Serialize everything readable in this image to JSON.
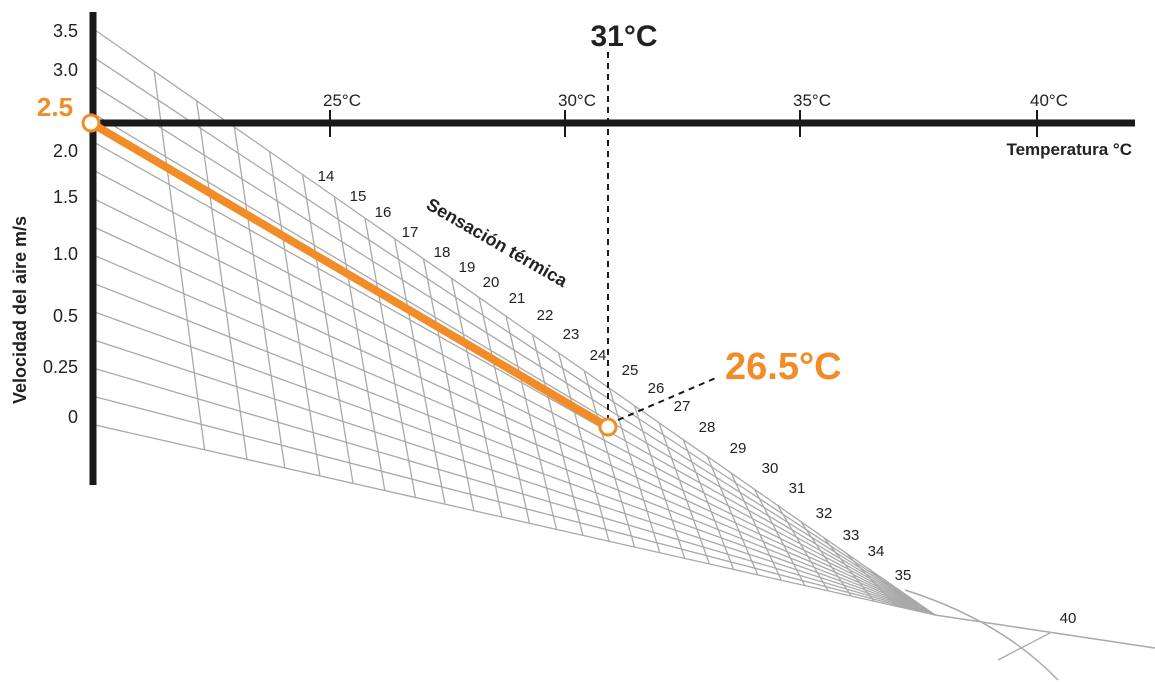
{
  "y_axis": {
    "label": "Velocidad del aire m/s",
    "ticks": [
      "3.5",
      "3.0",
      "2.5",
      "2.0",
      "1.5",
      "1.0",
      "0.5",
      "0.25",
      "0"
    ]
  },
  "x_axis": {
    "label": "Temperatura °C",
    "ticks": [
      "25°C",
      "30°C",
      "35°C",
      "40°C"
    ]
  },
  "sensation": {
    "label": "Sensación térmica",
    "values": [
      "14",
      "15",
      "16",
      "17",
      "18",
      "19",
      "20",
      "21",
      "22",
      "23",
      "24",
      "25",
      "26",
      "27",
      "28",
      "29",
      "30",
      "31",
      "32",
      "33",
      "34",
      "35",
      "40"
    ]
  },
  "example": {
    "temperature_label": "31°C",
    "air_speed_label": "2.5",
    "result_label": "26.5°C",
    "temperature": 31,
    "air_speed": 2.5,
    "result": 26.5
  },
  "colors": {
    "axis": "#1a1a1a",
    "grid": "#a9a9a9",
    "highlight": "#f28c28",
    "text": "#222222"
  }
}
